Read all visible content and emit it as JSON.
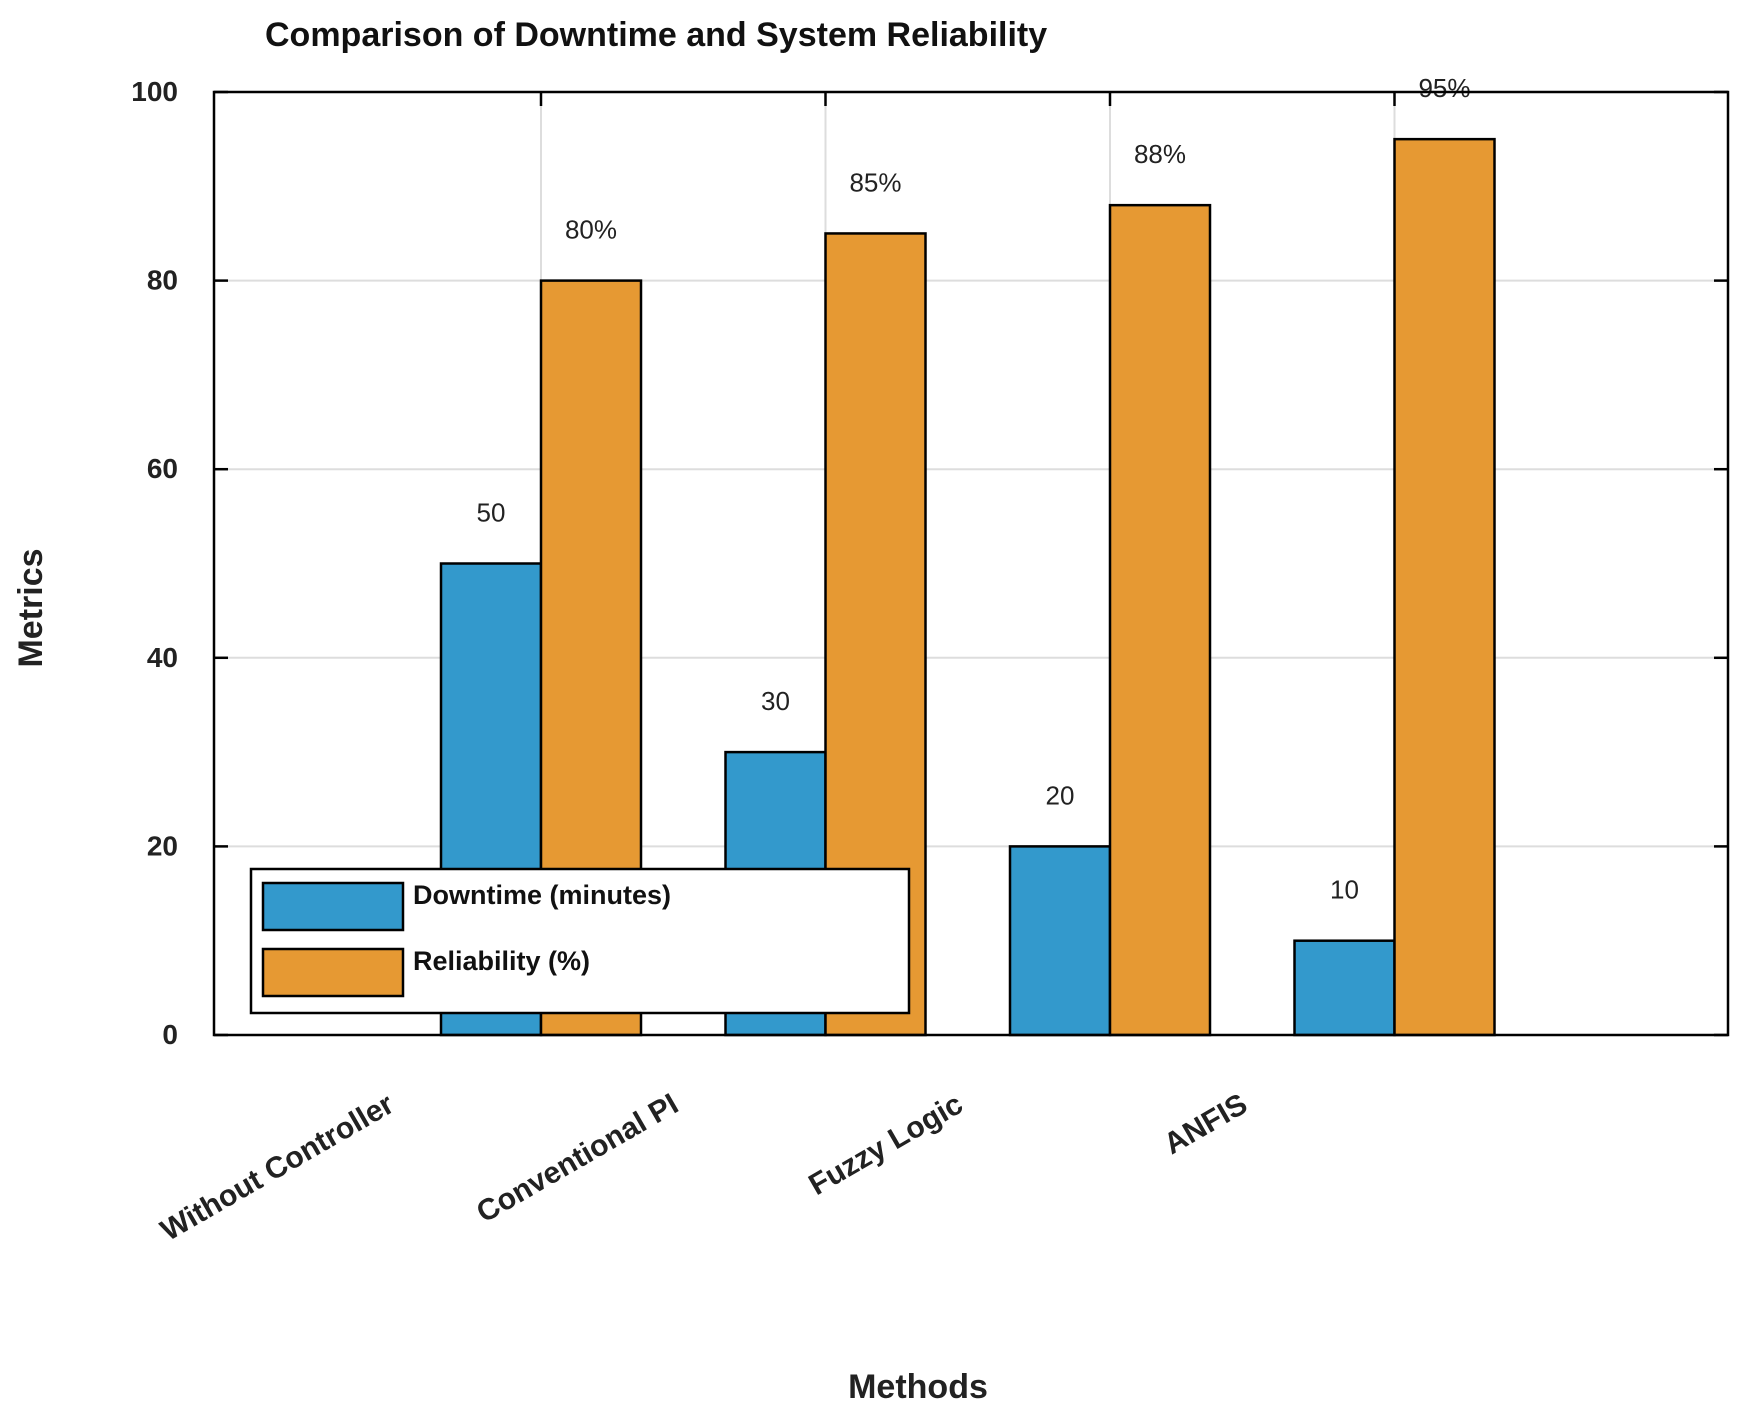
{
  "chart_data": {
    "type": "bar",
    "title": "Comparison of Downtime and System Reliability",
    "xlabel": "Methods",
    "ylabel": "Metrics",
    "categories": [
      "Without Controller",
      "Conventional PI",
      "Fuzzy Logic",
      "ANFIS"
    ],
    "ylim": [
      0,
      100
    ],
    "yticks": [
      0,
      20,
      40,
      60,
      80,
      100
    ],
    "grid": true,
    "legend_position": "bottom-left",
    "series": [
      {
        "name": "Downtime (minutes)",
        "color": "#3399CC",
        "values": [
          50,
          30,
          20,
          10
        ],
        "labels": [
          "50",
          "30",
          "20",
          "10"
        ]
      },
      {
        "name": "Reliability (%)",
        "color": "#E69933",
        "values": [
          80,
          85,
          88,
          95
        ],
        "labels": [
          "80%",
          "85%",
          "88%",
          "95%"
        ]
      }
    ]
  }
}
